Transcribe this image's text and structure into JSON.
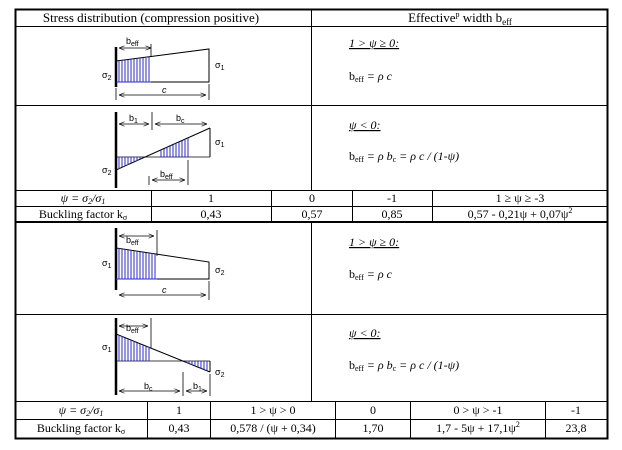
{
  "header": {
    "left": "Stress distribution (compression positive)",
    "right_main": "Effective",
    "right_sup": "p",
    "right_rest": " width b",
    "right_sub": "eff"
  },
  "labels": {
    "b_eff": "b",
    "b_eff_sub": "eff",
    "b_1": "b",
    "b_1_sub": "1",
    "b_2": "b",
    "b_2_sub": "2",
    "b_c": "b",
    "b_c_sub": "c",
    "c": "c",
    "sigma": "σ",
    "sub_1": "1",
    "sub_2": "2"
  },
  "section1": {
    "case1_condition": "1 > ψ ≥ 0:",
    "case1_formula": "b",
    "case1_formula_sub": "eff",
    "case1_formula_rest": " = ρ c",
    "case2_condition": "ψ < 0:",
    "case2_formula_a": "b",
    "case2_formula_a_sub": "eff",
    "case2_formula_b": " = ρ b",
    "case2_formula_b_sub": "c",
    "case2_formula_c": " = ρ c / (1-ψ)",
    "psi_label": "ψ = σ",
    "psi_sub2": "2",
    "psi_mid": "/σ",
    "psi_sub1": "1",
    "psi_values": [
      "1",
      "0",
      "-1",
      "1 ≥ ψ ≥ -3"
    ],
    "k_label": "Buckling factor k",
    "k_sub": "σ",
    "k_values": [
      "0,43",
      "0,57",
      "0,85"
    ],
    "k_formula": "0,57 - 0,21ψ + 0,07ψ",
    "k_formula_sup": "2"
  },
  "section2": {
    "case1_condition": "1 > ψ ≥ 0:",
    "case1_formula": "b",
    "case1_formula_sub": "eff",
    "case1_formula_rest": " = ρ c",
    "case2_condition": "ψ < 0:",
    "case2_formula_a": "b",
    "case2_formula_a_sub": "eff",
    "case2_formula_b": " = ρ b",
    "case2_formula_b_sub": "c",
    "case2_formula_c": " = ρ c / (1-ψ)",
    "psi_label": "ψ = σ",
    "psi_sub2": "2",
    "psi_mid": "/σ",
    "psi_sub1": "1",
    "psi_values": [
      "1",
      "1 > ψ > 0",
      "0",
      "0 > ψ > -1",
      "-1"
    ],
    "k_label": "Buckling factor k",
    "k_sub": "σ",
    "k_values": [
      "0,43",
      "0,578 / (ψ + 0,34)",
      "1,70"
    ],
    "k_formula": "1,7 - 5ψ + 17,1ψ",
    "k_formula_sup": "2",
    "k_last": "23,8"
  }
}
